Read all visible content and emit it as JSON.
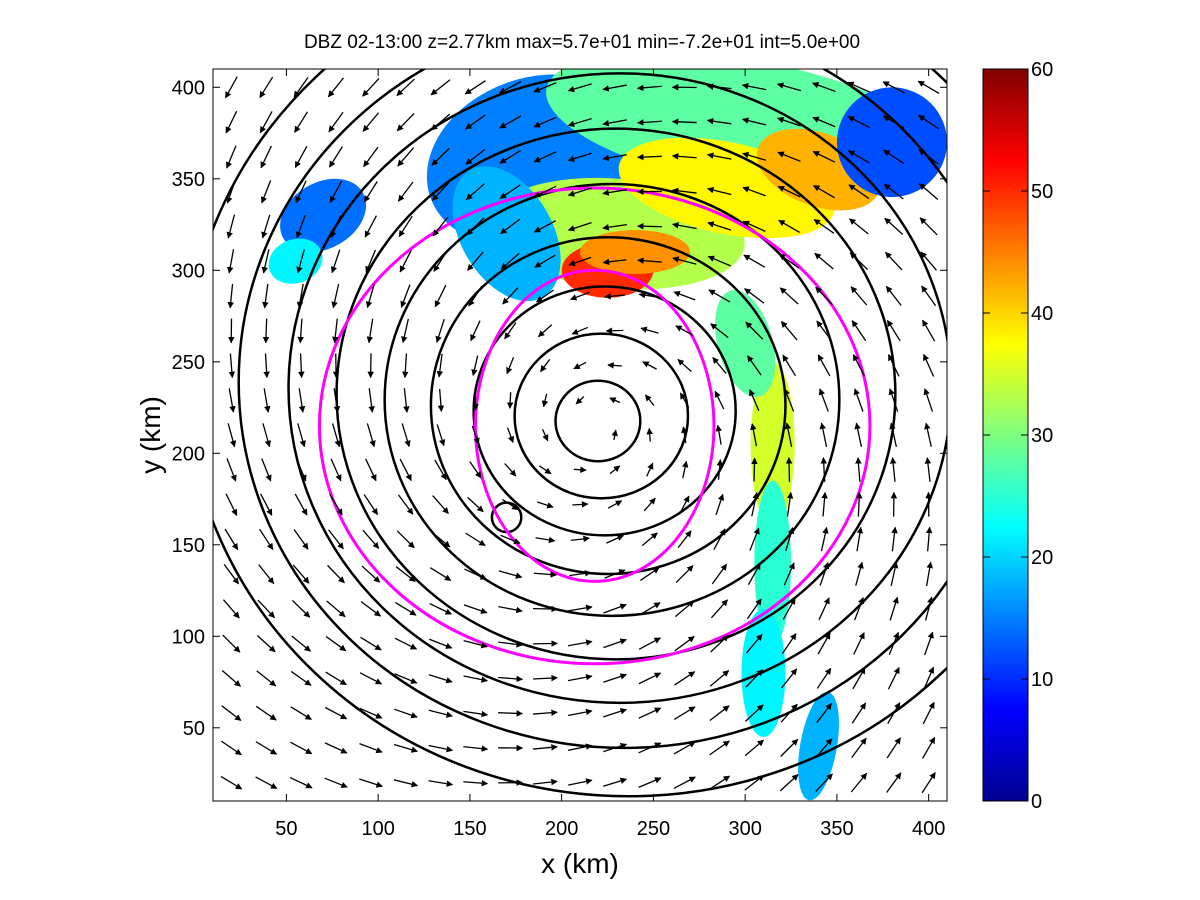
{
  "chart_data": {
    "type": "contour",
    "title": "DBZ 02-13:00 z=2.77km max=5.7e+01 min=-7.2e+01 int=5.0e+00",
    "xlabel": "x (km)",
    "ylabel": "y (km)",
    "xlim": [
      10,
      410
    ],
    "ylim": [
      10,
      410
    ],
    "x_ticks": [
      50,
      100,
      150,
      200,
      250,
      300,
      350,
      400
    ],
    "y_ticks": [
      50,
      100,
      150,
      200,
      250,
      300,
      350,
      400
    ],
    "colorbar": {
      "range": [
        0,
        60
      ],
      "ticks": [
        0,
        10,
        20,
        30,
        40,
        50,
        60
      ],
      "colormap": "jet"
    },
    "overlays": [
      {
        "kind": "filled_contour",
        "field": "DBZ"
      },
      {
        "kind": "contour_lines",
        "color": "#000000",
        "shape": "concentric rings around vortex center"
      },
      {
        "kind": "contour_line",
        "color": "#ff00ff",
        "shape": "two closed rings"
      },
      {
        "kind": "wind_vectors",
        "color": "#000000",
        "rotation": "counter-clockwise"
      }
    ],
    "vortex_center": {
      "x": 218,
      "y": 215
    },
    "magenta_rings": [
      {
        "center": {
          "x": 218,
          "y": 215
        },
        "rx": 65,
        "ry": 85
      },
      {
        "center": {
          "x": 218,
          "y": 215
        },
        "rx": 150,
        "ry": 130
      }
    ],
    "black_contour_radii_km": [
      22,
      45,
      68,
      92,
      118,
      145,
      172,
      200,
      230
    ]
  },
  "colors": {
    "magenta": "#ff00ff",
    "contour": "#000000",
    "background": "#ffffff"
  }
}
